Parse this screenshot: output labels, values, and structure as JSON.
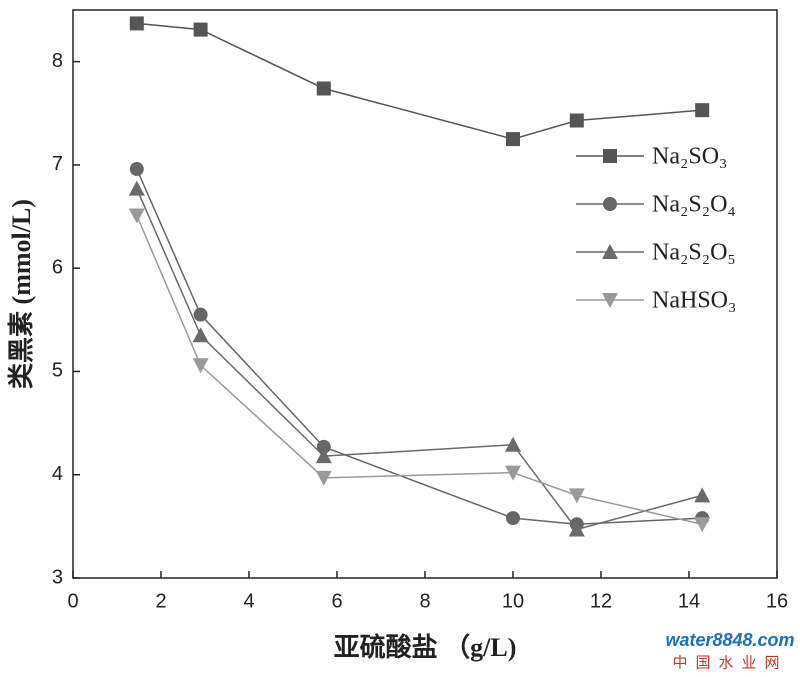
{
  "chart_data": {
    "type": "line",
    "xlabel": "亚硫酸盐 （g/L)",
    "ylabel": "类黑素 (mmol/L)",
    "x": [
      1.45,
      2.9,
      5.7,
      10,
      11.45,
      14.3
    ],
    "series": [
      {
        "name": "Na₂SO₃",
        "color": "#555555",
        "marker": "square",
        "values": [
          8.37,
          8.31,
          7.74,
          7.25,
          7.43,
          7.53
        ]
      },
      {
        "name": "Na₂S₂O₄",
        "color": "#666666",
        "marker": "circle",
        "values": [
          6.96,
          5.55,
          4.27,
          3.58,
          3.52,
          3.58
        ]
      },
      {
        "name": "Na₂S₂O₅",
        "color": "#6a6a6a",
        "marker": "triangle",
        "values": [
          6.77,
          5.35,
          4.18,
          4.29,
          3.47,
          3.8
        ]
      },
      {
        "name": "NaHSO₃",
        "color": "#9a9a9a",
        "marker": "triangle-down",
        "values": [
          6.51,
          5.06,
          3.97,
          4.02,
          3.8,
          3.52
        ]
      }
    ],
    "xlim": [
      0,
      16
    ],
    "xticks": [
      0,
      2,
      4,
      6,
      8,
      10,
      12,
      14,
      16
    ],
    "ylim": [
      3,
      8.5
    ],
    "yticks": [
      3,
      4,
      5,
      6,
      7,
      8
    ],
    "legend": "upper-right",
    "watermark": {
      "text": "water8848.com",
      "subtext": "中国水业网"
    }
  }
}
